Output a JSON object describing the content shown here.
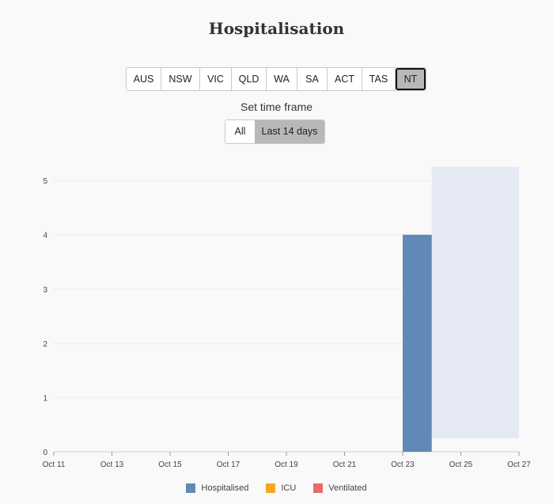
{
  "title": "Hospitalisation",
  "regions": [
    {
      "label": "AUS",
      "active": false
    },
    {
      "label": "NSW",
      "active": false
    },
    {
      "label": "VIC",
      "active": false
    },
    {
      "label": "QLD",
      "active": false
    },
    {
      "label": "WA",
      "active": false
    },
    {
      "label": "SA",
      "active": false
    },
    {
      "label": "ACT",
      "active": false
    },
    {
      "label": "TAS",
      "active": false
    },
    {
      "label": "NT",
      "active": true
    }
  ],
  "timeframe": {
    "label": "Set time frame",
    "options": [
      {
        "label": "All",
        "active": false
      },
      {
        "label": "Last 14 days",
        "active": true
      }
    ]
  },
  "chart_data": {
    "type": "bar",
    "x_ticks": [
      "Oct 11",
      "Oct 13",
      "Oct 15",
      "Oct 17",
      "Oct 19",
      "Oct 21",
      "Oct 23",
      "Oct 25",
      "Oct 27"
    ],
    "y_ticks": [
      0,
      1,
      2,
      3,
      4,
      5
    ],
    "ylim": [
      0,
      5.25
    ],
    "xlim": [
      "Oct 11",
      "Oct 27"
    ],
    "grid": true,
    "legend_position": "bottom",
    "series": [
      {
        "name": "Hospitalised",
        "color": "#6289b5",
        "points": [
          {
            "x": "Oct 23",
            "y": 4
          }
        ]
      },
      {
        "name": "ICU",
        "color": "#f5a623",
        "points": []
      },
      {
        "name": "Ventilated",
        "color": "#ec6a6a",
        "points": []
      }
    ],
    "highlight_region": {
      "from": "Oct 24",
      "to": "Oct 27",
      "color": "#e5e9f3"
    }
  }
}
